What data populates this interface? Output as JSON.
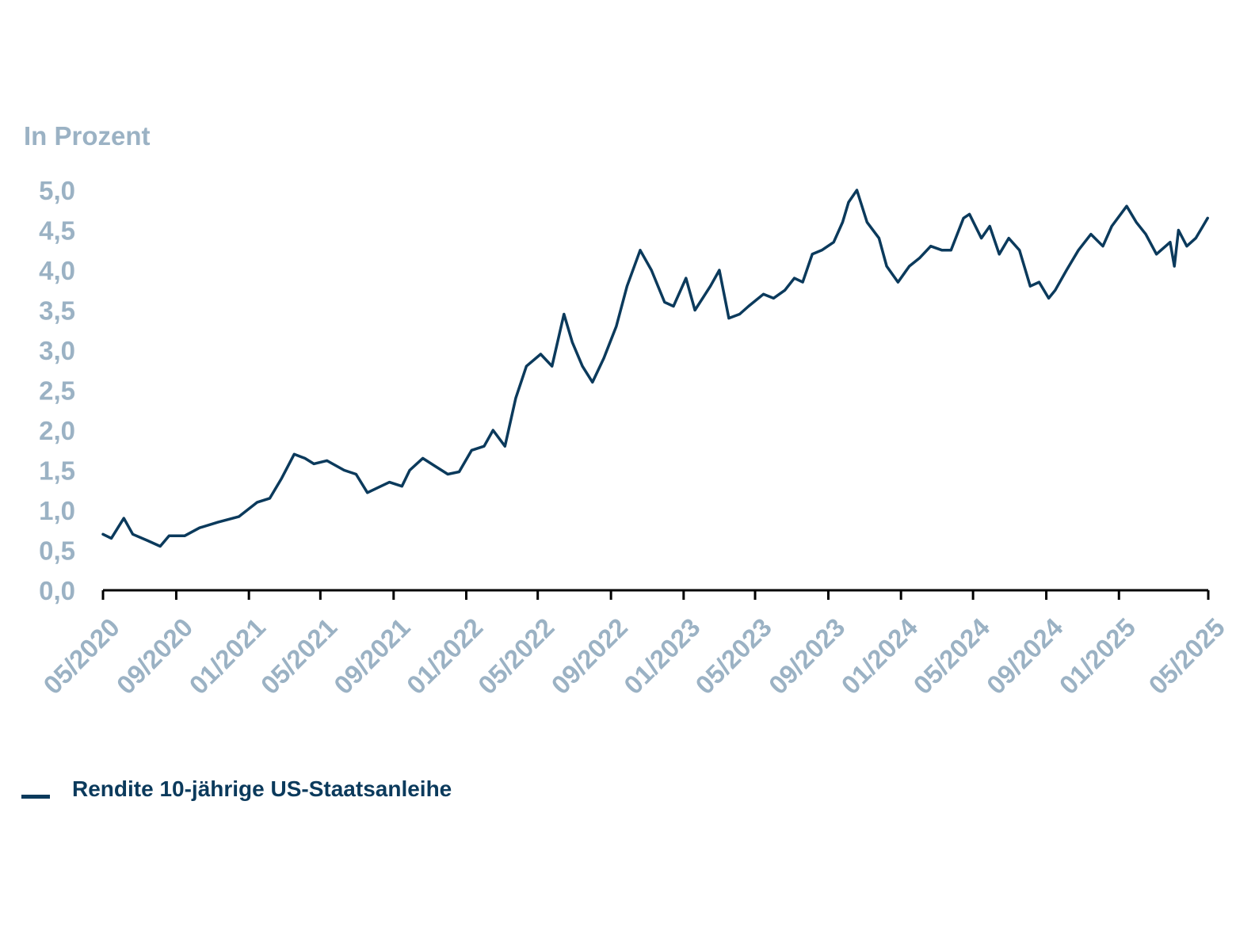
{
  "colors": {
    "line": "#0b3a5c",
    "axis": "#000000",
    "tick_label": "#9bb2c4"
  },
  "chart_data": {
    "type": "line",
    "title": "",
    "ylabel": "In Prozent",
    "xlabel": "",
    "ylim": [
      0,
      5
    ],
    "yticks": [
      0,
      0.5,
      1,
      1.5,
      2,
      2.5,
      3,
      3.5,
      4,
      4.5,
      5
    ],
    "ytick_labels": [
      "0,0",
      "0,5",
      "1,0",
      "1,5",
      "2,0",
      "2,5",
      "3,0",
      "3,5",
      "4,0",
      "4,5",
      "5,0"
    ],
    "xlim": [
      "2020-05-01",
      "2025-05-31"
    ],
    "x_ticks": [
      "2020-05-01",
      "2020-09-01",
      "2021-01-01",
      "2021-05-01",
      "2021-09-01",
      "2022-01-01",
      "2022-05-01",
      "2022-09-01",
      "2023-01-01",
      "2023-05-01",
      "2023-09-01",
      "2024-01-01",
      "2024-05-01",
      "2024-09-01",
      "2025-01-01",
      "2025-05-31"
    ],
    "x_tick_labels": [
      "05/2020",
      "09/2020",
      "01/2021",
      "05/2021",
      "09/2021",
      "01/2022",
      "05/2022",
      "09/2022",
      "01/2023",
      "05/2023",
      "09/2023",
      "01/2024",
      "05/2024",
      "09/2024",
      "01/2025",
      "05/2025"
    ],
    "grid": false,
    "legend_position": "bottom-left",
    "series": [
      {
        "name": "Rendite 10-jährige US-Staatsanleihe",
        "x": [
          "2020-05-01",
          "2020-05-15",
          "2020-06-05",
          "2020-06-20",
          "2020-07-15",
          "2020-08-05",
          "2020-08-20",
          "2020-09-15",
          "2020-10-10",
          "2020-11-10",
          "2020-12-15",
          "2021-01-15",
          "2021-02-05",
          "2021-02-25",
          "2021-03-18",
          "2021-04-05",
          "2021-04-20",
          "2021-05-12",
          "2021-06-10",
          "2021-06-30",
          "2021-07-19",
          "2021-08-05",
          "2021-08-25",
          "2021-09-15",
          "2021-09-28",
          "2021-10-20",
          "2021-11-10",
          "2021-12-01",
          "2021-12-20",
          "2022-01-10",
          "2022-01-31",
          "2022-02-15",
          "2022-03-07",
          "2022-03-25",
          "2022-04-12",
          "2022-05-06",
          "2022-05-25",
          "2022-06-14",
          "2022-06-28",
          "2022-07-15",
          "2022-08-01",
          "2022-08-20",
          "2022-09-10",
          "2022-09-28",
          "2022-10-20",
          "2022-11-08",
          "2022-11-30",
          "2022-12-15",
          "2023-01-05",
          "2023-01-20",
          "2023-02-15",
          "2023-03-02",
          "2023-03-18",
          "2023-04-05",
          "2023-04-20",
          "2023-05-15",
          "2023-06-01",
          "2023-06-20",
          "2023-07-06",
          "2023-07-20",
          "2023-08-05",
          "2023-08-21",
          "2023-09-10",
          "2023-09-25",
          "2023-10-05",
          "2023-10-19",
          "2023-11-05",
          "2023-11-25",
          "2023-12-08",
          "2023-12-27",
          "2024-01-15",
          "2024-02-01",
          "2024-02-20",
          "2024-03-10",
          "2024-03-25",
          "2024-04-15",
          "2024-04-25",
          "2024-05-15",
          "2024-05-29",
          "2024-06-14",
          "2024-06-30",
          "2024-07-18",
          "2024-08-05",
          "2024-08-20",
          "2024-09-05",
          "2024-09-16",
          "2024-10-05",
          "2024-10-25",
          "2024-11-15",
          "2024-12-05",
          "2024-12-20",
          "2025-01-14",
          "2025-01-30",
          "2025-02-15",
          "2025-03-05",
          "2025-03-28",
          "2025-04-04",
          "2025-04-11",
          "2025-04-25",
          "2025-05-10",
          "2025-05-22",
          "2025-05-30"
        ],
        "values": [
          0.7,
          0.65,
          0.9,
          0.7,
          0.62,
          0.55,
          0.68,
          0.68,
          0.78,
          0.85,
          0.92,
          1.1,
          1.15,
          1.4,
          1.7,
          1.65,
          1.58,
          1.62,
          1.5,
          1.45,
          1.22,
          1.28,
          1.35,
          1.3,
          1.5,
          1.65,
          1.55,
          1.45,
          1.48,
          1.75,
          1.8,
          2.0,
          1.8,
          2.4,
          2.8,
          2.95,
          2.8,
          3.45,
          3.1,
          2.8,
          2.6,
          2.9,
          3.3,
          3.8,
          4.25,
          4.0,
          3.6,
          3.55,
          3.9,
          3.5,
          3.8,
          4.0,
          3.4,
          3.45,
          3.55,
          3.7,
          3.65,
          3.75,
          3.9,
          3.85,
          4.2,
          4.25,
          4.35,
          4.6,
          4.85,
          5.0,
          4.6,
          4.4,
          4.05,
          3.85,
          4.05,
          4.15,
          4.3,
          4.25,
          4.25,
          4.65,
          4.7,
          4.4,
          4.55,
          4.2,
          4.4,
          4.25,
          3.8,
          3.85,
          3.65,
          3.75,
          4.0,
          4.25,
          4.45,
          4.3,
          4.55,
          4.8,
          4.6,
          4.45,
          4.2,
          4.35,
          4.05,
          4.5,
          4.3,
          4.4,
          4.55,
          4.65
        ]
      }
    ]
  },
  "unit_label": "In Prozent",
  "legend": {
    "label": "Rendite 10-jährige US-Staatsanleihe"
  }
}
